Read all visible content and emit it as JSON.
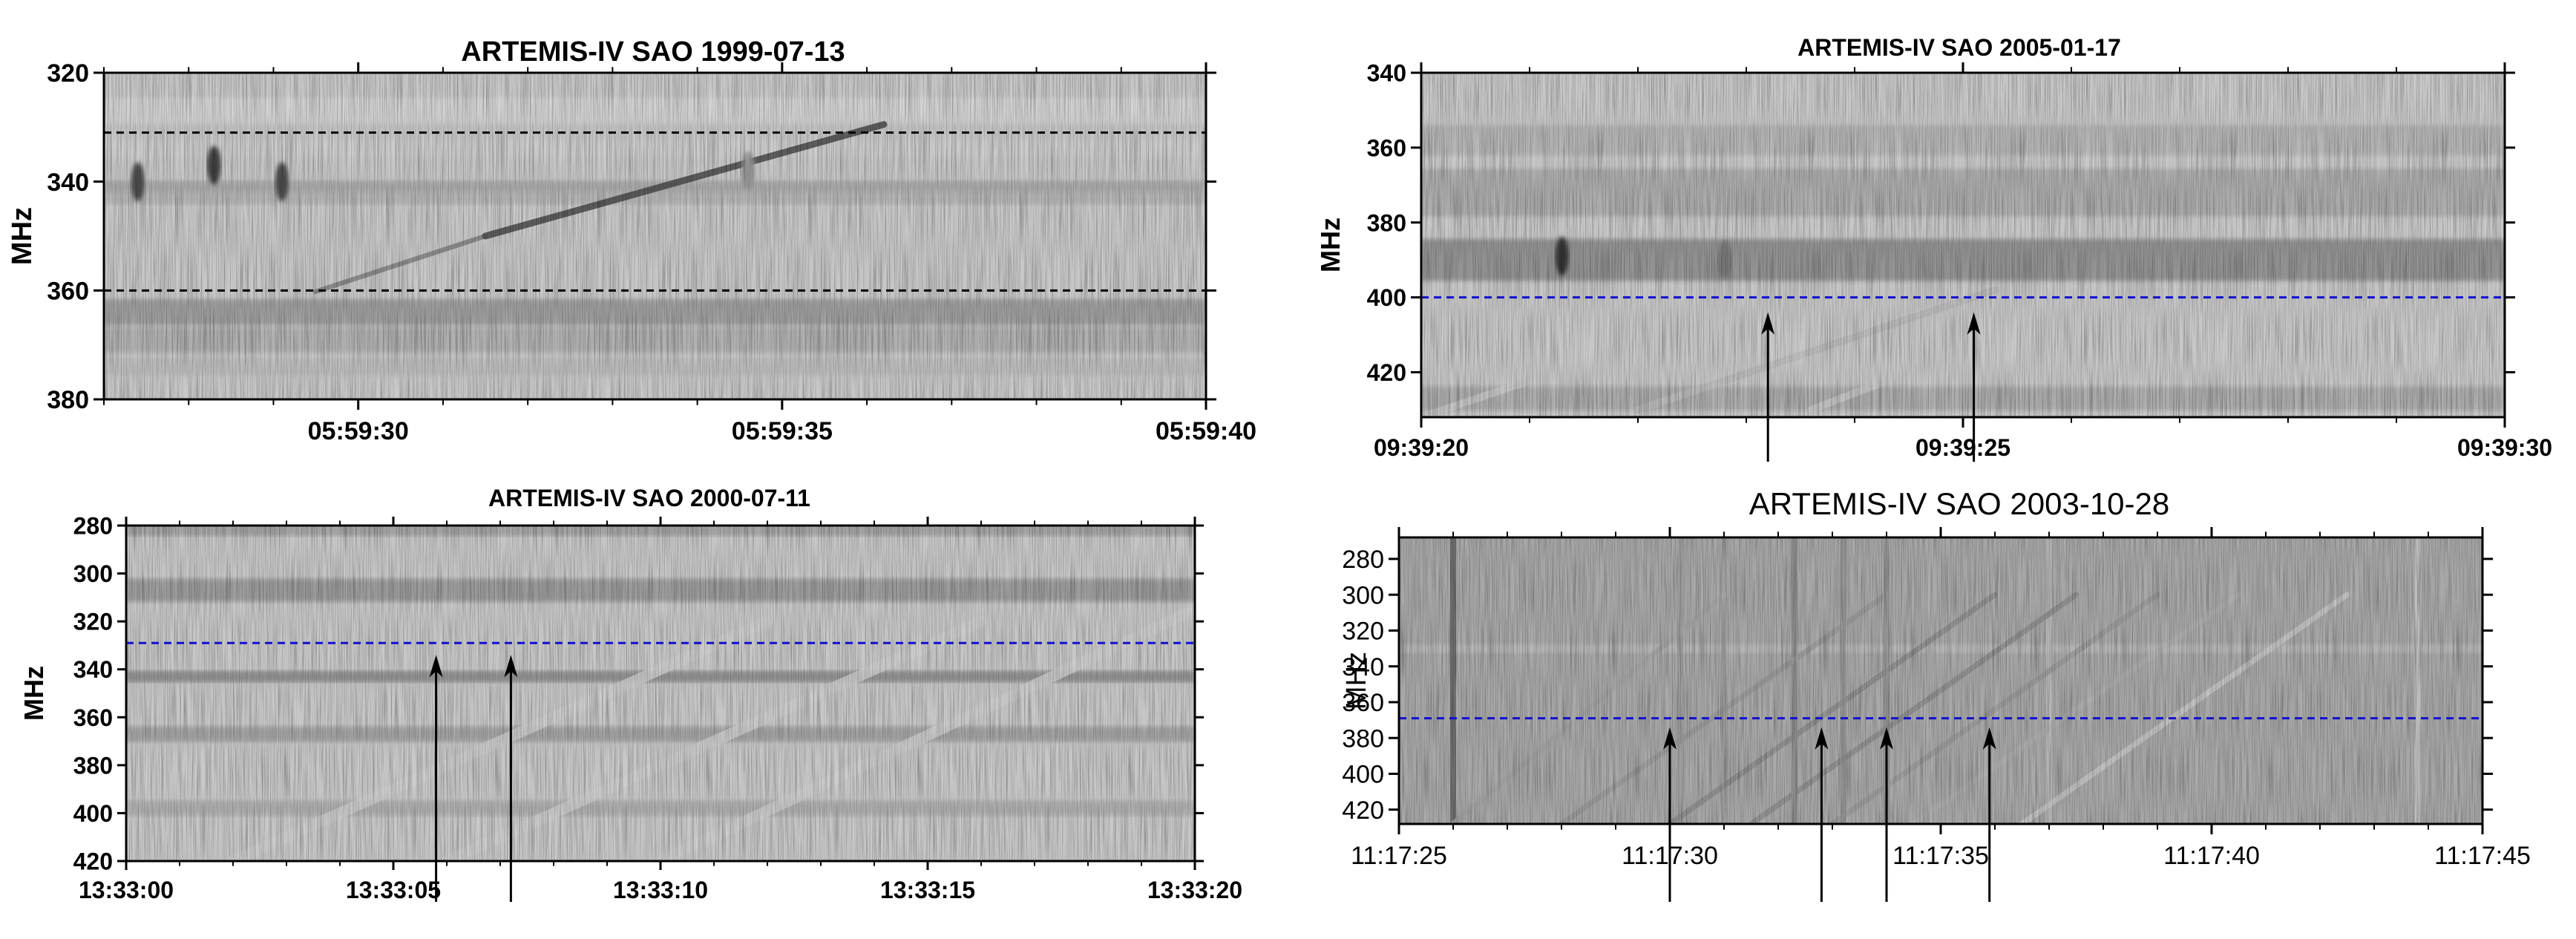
{
  "chart_data": [
    {
      "type": "heatmap",
      "title": "ARTEMIS-IV  SAO 1999-07-13",
      "ylabel": "MHz",
      "xlabel": "",
      "x_tick_labels": [
        "05:59:30",
        "05:59:35",
        "05:59:40"
      ],
      "x_tick_seconds": [
        27.0,
        32.0,
        37.0
      ],
      "xlim_seconds": [
        24.0,
        37.0
      ],
      "y_tick_labels": [
        "320",
        "340",
        "360",
        "380"
      ],
      "y_tick_values": [
        320,
        340,
        360,
        380
      ],
      "ylim": [
        320,
        380
      ],
      "y_inverted": true,
      "reference_lines": [
        {
          "value": 331,
          "color": "#000000"
        },
        {
          "value": 360,
          "color": "#000000"
        }
      ],
      "bands": [
        {
          "y": 327,
          "w": 3,
          "d": 0.18
        },
        {
          "y": 334,
          "w": 2,
          "d": 0.22
        },
        {
          "y": 341,
          "w": 1.5,
          "d": 0.4
        },
        {
          "y": 343,
          "w": 1.5,
          "d": 0.35
        },
        {
          "y": 364,
          "w": 3,
          "d": 0.48
        },
        {
          "y": 369,
          "w": 3,
          "d": 0.38
        },
        {
          "y": 374,
          "w": 2,
          "d": 0.3
        }
      ],
      "drifts": [
        {
          "x0": 26.5,
          "f0": 360.2,
          "x1": 28.5,
          "f1": 350.0,
          "d": 0.55,
          "w": 1.3
        },
        {
          "x0": 28.5,
          "f0": 350.0,
          "x1": 33.2,
          "f1": 329.5,
          "d": 0.8,
          "w": 1.8
        }
      ],
      "blobs": [
        {
          "x": 24.4,
          "f": 340,
          "d": 0.8
        },
        {
          "x": 25.3,
          "f": 337,
          "d": 0.85
        },
        {
          "x": 26.1,
          "f": 340,
          "d": 0.8
        },
        {
          "x": 31.6,
          "f": 338,
          "d": 0.45
        }
      ],
      "arrows": []
    },
    {
      "type": "heatmap",
      "title": "ARTEMIS-IV  SAO 2005-01-17",
      "ylabel": "MHz",
      "xlabel": "",
      "x_tick_labels": [
        "09:39:20",
        "09:39:25",
        "09:39:30"
      ],
      "x_tick_seconds": [
        20.0,
        25.0,
        30.0
      ],
      "xlim_seconds": [
        20.0,
        30.0
      ],
      "y_tick_labels": [
        "340",
        "360",
        "380",
        "400",
        "420"
      ],
      "y_tick_values": [
        340,
        360,
        380,
        400,
        420
      ],
      "ylim": [
        340,
        432
      ],
      "y_inverted": true,
      "reference_lines": [
        {
          "value": 400,
          "color": "#1010d0"
        }
      ],
      "bands": [
        {
          "y": 358,
          "w": 5,
          "d": 0.35
        },
        {
          "y": 372,
          "w": 8,
          "d": 0.4
        },
        {
          "y": 390,
          "w": 7,
          "d": 0.55
        },
        {
          "y": 427,
          "w": 4,
          "d": 0.4
        }
      ],
      "drifts": [
        {
          "x0": 20.0,
          "f0": 432,
          "x1": 23.5,
          "f1": 398,
          "d": 0.25,
          "w": 2
        },
        {
          "x0": 22.0,
          "f0": 430,
          "x1": 25.3,
          "f1": 398,
          "d": 0.3,
          "w": 2
        },
        {
          "x0": 23.6,
          "f0": 430,
          "x1": 26.5,
          "f1": 398,
          "d": 0.25,
          "w": 2
        }
      ],
      "blobs": [
        {
          "x": 21.3,
          "f": 389,
          "d": 0.9
        },
        {
          "x": 22.8,
          "f": 390,
          "d": 0.6
        }
      ],
      "arrows": [
        {
          "x": 23.2,
          "f": 404
        },
        {
          "x": 25.1,
          "f": 404
        }
      ]
    },
    {
      "type": "heatmap",
      "title": "ARTEMIS-IV  SAO 2000-07-11",
      "ylabel": "MHz",
      "xlabel": "",
      "x_tick_labels": [
        "13:33:00",
        "13:33:05",
        "13:33:10",
        "13:33:15",
        "13:33:20"
      ],
      "x_tick_seconds": [
        0.0,
        5.0,
        10.0,
        15.0,
        20.0
      ],
      "xlim_seconds": [
        0.0,
        20.0
      ],
      "y_tick_labels": [
        "280",
        "300",
        "320",
        "340",
        "360",
        "380",
        "400",
        "420"
      ],
      "y_tick_values": [
        280,
        300,
        320,
        340,
        360,
        380,
        400,
        420
      ],
      "ylim": [
        280,
        420
      ],
      "y_inverted": true,
      "reference_lines": [
        {
          "value": 329,
          "color": "#1010d0"
        }
      ],
      "bands": [
        {
          "y": 282,
          "w": 3,
          "d": 0.45
        },
        {
          "y": 307,
          "w": 6,
          "d": 0.5
        },
        {
          "y": 343,
          "w": 3,
          "d": 0.55
        },
        {
          "y": 367,
          "w": 4,
          "d": 0.45
        },
        {
          "y": 398,
          "w": 4,
          "d": 0.38
        }
      ],
      "drifts": [
        {
          "x0": 2.0,
          "f0": 420,
          "x1": 12.0,
          "f1": 320,
          "d": 0.22,
          "w": 3
        },
        {
          "x0": 6.0,
          "f0": 420,
          "x1": 16.0,
          "f1": 320,
          "d": 0.22,
          "w": 3
        },
        {
          "x0": 10.0,
          "f0": 420,
          "x1": 20.0,
          "f1": 315,
          "d": 0.22,
          "w": 3
        }
      ],
      "blobs": [],
      "arrows": [
        {
          "x": 5.8,
          "f": 334
        },
        {
          "x": 7.2,
          "f": 334
        }
      ]
    },
    {
      "type": "heatmap",
      "title": "ARTEMIS-IV  SAO 2003-10-28",
      "ylabel": "MHz",
      "xlabel": "",
      "x_tick_labels": [
        "11:17:25",
        "11:17:30",
        "11:17:35",
        "11:17:40",
        "11:17:45"
      ],
      "x_tick_seconds": [
        25.0,
        30.0,
        35.0,
        40.0,
        45.0
      ],
      "xlim_seconds": [
        25.0,
        45.0
      ],
      "y_tick_labels": [
        "280",
        "300",
        "320",
        "340",
        "360",
        "380",
        "400",
        "420"
      ],
      "y_tick_values": [
        280,
        300,
        320,
        340,
        360,
        380,
        400,
        420
      ],
      "ylim": [
        268,
        428
      ],
      "y_inverted": true,
      "reference_lines": [
        {
          "value": 369,
          "color": "#1010d0"
        }
      ],
      "bands": [
        {
          "y": 330,
          "w": 3,
          "d": 0.3
        }
      ],
      "drifts": [
        {
          "x0": 26.0,
          "f0": 428,
          "x1": 31.0,
          "f1": 300,
          "d": 0.4,
          "w": 1.5
        },
        {
          "x0": 28.0,
          "f0": 428,
          "x1": 34.0,
          "f1": 300,
          "d": 0.45,
          "w": 1.5
        },
        {
          "x0": 30.0,
          "f0": 428,
          "x1": 36.0,
          "f1": 300,
          "d": 0.5,
          "w": 1.5
        },
        {
          "x0": 31.5,
          "f0": 428,
          "x1": 37.5,
          "f1": 300,
          "d": 0.5,
          "w": 1.5
        },
        {
          "x0": 33.0,
          "f0": 428,
          "x1": 39.0,
          "f1": 300,
          "d": 0.45,
          "w": 1.5
        },
        {
          "x0": 34.5,
          "f0": 428,
          "x1": 40.5,
          "f1": 300,
          "d": 0.35,
          "w": 1.5
        },
        {
          "x0": 36.5,
          "f0": 428,
          "x1": 42.5,
          "f1": 300,
          "d": 0.25,
          "w": 1.5
        }
      ],
      "vbars": [
        {
          "x": 26.0,
          "d": 0.75
        },
        {
          "x": 30.2,
          "d": 0.45
        },
        {
          "x": 31.0,
          "d": 0.45
        },
        {
          "x": 32.3,
          "d": 0.55
        },
        {
          "x": 33.2,
          "d": 0.5
        },
        {
          "x": 34.0,
          "d": 0.5
        },
        {
          "x": 34.8,
          "d": 0.35
        },
        {
          "x": 37.0,
          "d": 0.3
        },
        {
          "x": 43.8,
          "d": 0.25
        }
      ],
      "blobs": [],
      "arrows": [
        {
          "x": 30.0,
          "f": 374
        },
        {
          "x": 32.8,
          "f": 374
        },
        {
          "x": 34.0,
          "f": 374
        },
        {
          "x": 35.9,
          "f": 374
        }
      ]
    }
  ]
}
